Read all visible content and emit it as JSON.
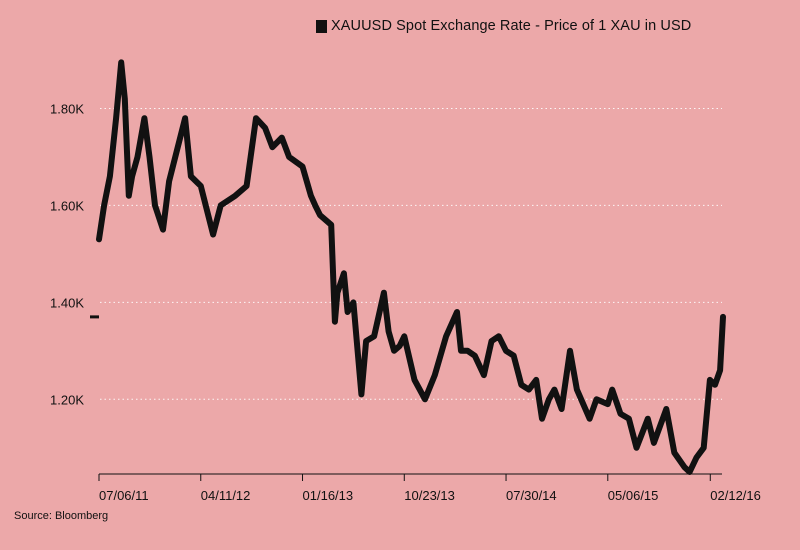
{
  "chart_data": {
    "type": "line",
    "legend": {
      "label": "XAUUSD Spot Exchange Rate - Price of 1 XAU in USD",
      "placement": "top"
    },
    "source": "Source: Bloomberg",
    "line_color": "#111111",
    "background": "#eca8a9",
    "grid": {
      "horizontal": true,
      "style": "dotted",
      "color": "#ffffff"
    },
    "y_ticks": [
      {
        "value": 1200,
        "label": "1.20K"
      },
      {
        "value": 1400,
        "label": "1.40K"
      },
      {
        "value": 1600,
        "label": "1.60K"
      },
      {
        "value": 1800,
        "label": "1.80K"
      }
    ],
    "ylim": [
      1050,
      1900
    ],
    "x_ticks": [
      {
        "date": "2011-07-06",
        "label": "07/06/11"
      },
      {
        "date": "2012-04-11",
        "label": "04/11/12"
      },
      {
        "date": "2013-01-16",
        "label": "01/16/13"
      },
      {
        "date": "2013-10-23",
        "label": "10/23/13"
      },
      {
        "date": "2014-07-30",
        "label": "07/30/14"
      },
      {
        "date": "2015-05-06",
        "label": "05/06/15"
      },
      {
        "date": "2016-02-12",
        "label": "02/12/16"
      }
    ],
    "xlim": [
      "2011-07-06",
      "2016-03-18"
    ],
    "last_value_marker": 1370,
    "series": [
      {
        "x": [
          "2011-07-06",
          "2011-07-20",
          "2011-08-05",
          "2011-08-22",
          "2011-09-05",
          "2011-09-15",
          "2011-09-26",
          "2011-10-05",
          "2011-10-20",
          "2011-11-08",
          "2011-11-22",
          "2011-12-07",
          "2011-12-29",
          "2012-01-15",
          "2012-02-28",
          "2012-03-15",
          "2012-04-11",
          "2012-05-15",
          "2012-06-05",
          "2012-07-15",
          "2012-08-15",
          "2012-09-10",
          "2012-10-05",
          "2012-10-25",
          "2012-11-20",
          "2012-12-10",
          "2013-01-16",
          "2013-02-08",
          "2013-02-20",
          "2013-03-05",
          "2013-04-05",
          "2013-04-12",
          "2013-04-15",
          "2013-04-22",
          "2013-05-10",
          "2013-05-20",
          "2013-06-05",
          "2013-06-27",
          "2013-07-10",
          "2013-08-01",
          "2013-08-28",
          "2013-09-10",
          "2013-09-25",
          "2013-10-10",
          "2013-10-23",
          "2013-11-20",
          "2013-12-19",
          "2014-01-15",
          "2014-02-15",
          "2014-03-17",
          "2014-03-28",
          "2014-04-15",
          "2014-05-05",
          "2014-05-30",
          "2014-06-20",
          "2014-07-10",
          "2014-07-30",
          "2014-08-20",
          "2014-09-10",
          "2014-10-01",
          "2014-10-21",
          "2014-11-06",
          "2014-11-25",
          "2014-12-10",
          "2014-12-30",
          "2015-01-22",
          "2015-02-10",
          "2015-03-17",
          "2015-04-05",
          "2015-05-06",
          "2015-05-18",
          "2015-06-10",
          "2015-07-03",
          "2015-07-24",
          "2015-08-24",
          "2015-09-10",
          "2015-10-14",
          "2015-11-05",
          "2015-12-03",
          "2015-12-17",
          "2016-01-05",
          "2016-01-25",
          "2016-02-11",
          "2016-02-25",
          "2016-03-10",
          "2016-03-18"
        ],
        "y": [
          1530,
          1600,
          1660,
          1780,
          1895,
          1820,
          1620,
          1660,
          1700,
          1780,
          1700,
          1600,
          1550,
          1650,
          1780,
          1660,
          1640,
          1540,
          1600,
          1620,
          1640,
          1780,
          1760,
          1720,
          1740,
          1700,
          1680,
          1620,
          1600,
          1580,
          1560,
          1420,
          1360,
          1420,
          1460,
          1380,
          1400,
          1210,
          1320,
          1330,
          1420,
          1340,
          1300,
          1310,
          1330,
          1240,
          1200,
          1250,
          1330,
          1380,
          1300,
          1300,
          1290,
          1250,
          1320,
          1330,
          1300,
          1290,
          1230,
          1220,
          1240,
          1160,
          1200,
          1220,
          1180,
          1300,
          1220,
          1160,
          1200,
          1190,
          1220,
          1170,
          1160,
          1100,
          1160,
          1110,
          1180,
          1090,
          1060,
          1050,
          1080,
          1100,
          1240,
          1230,
          1260,
          1370
        ]
      }
    ]
  }
}
